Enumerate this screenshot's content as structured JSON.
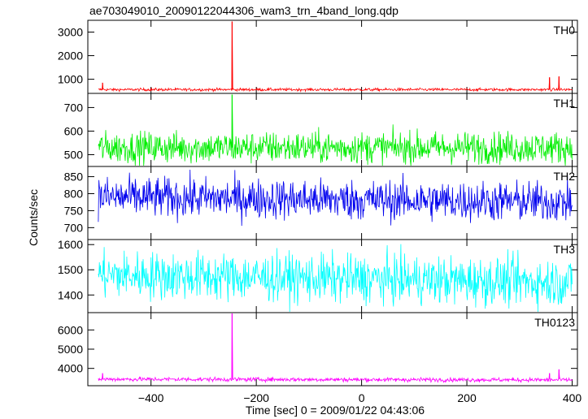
{
  "chart_data": {
    "type": "line",
    "title": "ae703049010_20090122044306_wam3_trn_4band_long.qdp",
    "xlabel": "Time [sec] 0 = 2009/01/22 04:43:06",
    "ylabel": "Counts/sec",
    "xlim": [
      -520,
      410
    ],
    "xticks": [
      -400,
      -200,
      0,
      200,
      400
    ],
    "grid": false,
    "panels": [
      {
        "name": "TH0",
        "color": "#ff0000",
        "ylim": [
          400,
          3500
        ],
        "yticks": [
          1000,
          2000,
          3000
        ],
        "baseline": 560,
        "noise": 30,
        "trend": 0,
        "spikes": [
          {
            "x": -492,
            "y": 850
          },
          {
            "x": -246,
            "y": 3450
          },
          {
            "x": 357,
            "y": 1080
          },
          {
            "x": 375,
            "y": 1120
          }
        ]
      },
      {
        "name": "TH1",
        "color": "#00ee00",
        "ylim": [
          450,
          760
        ],
        "yticks": [
          500,
          600,
          700
        ],
        "baseline": 530,
        "noise": 34,
        "trend": 0,
        "spikes": [
          {
            "x": -246,
            "y": 755
          }
        ]
      },
      {
        "name": "TH2",
        "color": "#0000ee",
        "ylim": [
          665,
          880
        ],
        "yticks": [
          700,
          750,
          800,
          850
        ],
        "baseline": 790,
        "noise": 30,
        "trend": -15,
        "spikes": []
      },
      {
        "name": "TH3",
        "color": "#00ffff",
        "ylim": [
          1330,
          1620
        ],
        "yticks": [
          1400,
          1500,
          1600
        ],
        "baseline": 1480,
        "noise": 48,
        "trend": -30,
        "spikes": []
      },
      {
        "name": "TH0123",
        "color": "#ff00ff",
        "ylim": [
          3100,
          6900
        ],
        "yticks": [
          4000,
          5000,
          6000
        ],
        "baseline": 3440,
        "noise": 55,
        "trend": -40,
        "spikes": [
          {
            "x": -492,
            "y": 3750
          },
          {
            "x": -246,
            "y": 6900
          },
          {
            "x": 357,
            "y": 3750
          },
          {
            "x": 375,
            "y": 3950
          }
        ]
      }
    ]
  }
}
